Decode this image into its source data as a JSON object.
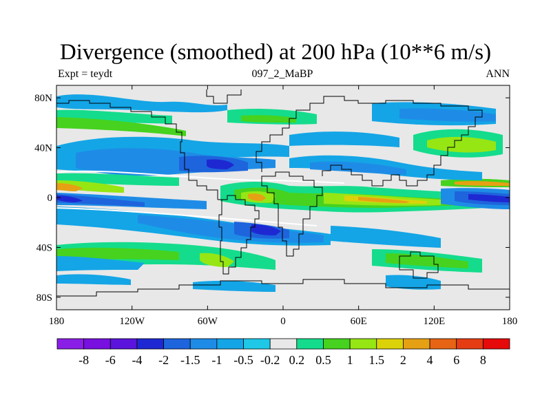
{
  "title": "Divergence (smoothed) at 200 hPa (10**6 m/s)",
  "subtitle_left": "Expt = teydt",
  "subtitle_center": "097_2_MaBP",
  "subtitle_right": "ANN",
  "map": {
    "projection": "cylindrical-equidistant",
    "lon_range": [
      -180,
      180
    ],
    "lat_range": [
      -90,
      90
    ],
    "x_ticks": [
      {
        "lon": -180,
        "label": "180"
      },
      {
        "lon": -120,
        "label": "120W"
      },
      {
        "lon": -60,
        "label": "60W"
      },
      {
        "lon": 0,
        "label": "0"
      },
      {
        "lon": 60,
        "label": "60E"
      },
      {
        "lon": 120,
        "label": "120E"
      },
      {
        "lon": 180,
        "label": "180"
      }
    ],
    "y_ticks": [
      {
        "lat": 80,
        "label": "80N"
      },
      {
        "lat": 40,
        "label": "40N"
      },
      {
        "lat": 0,
        "label": "0"
      },
      {
        "lat": -40,
        "label": "40S"
      },
      {
        "lat": -80,
        "label": "80S"
      }
    ]
  },
  "colorbar": {
    "colors": [
      "#8a1ee6",
      "#7810e0",
      "#5a14dc",
      "#1e28d2",
      "#1e64dc",
      "#1e8ce6",
      "#14a5e6",
      "#1ec8e6",
      "#e8e8e8",
      "#14dc8c",
      "#46d21e",
      "#96e614",
      "#dcd20a",
      "#e6a014",
      "#e66414",
      "#e63c14",
      "#e60a0a"
    ],
    "labels": [
      "-8",
      "-6",
      "-4",
      "-2",
      "-1.5",
      "-1",
      "-0.5",
      "-0.2",
      "0.2",
      "0.5",
      "1",
      "1.5",
      "2",
      "4",
      "6",
      "8"
    ]
  }
}
